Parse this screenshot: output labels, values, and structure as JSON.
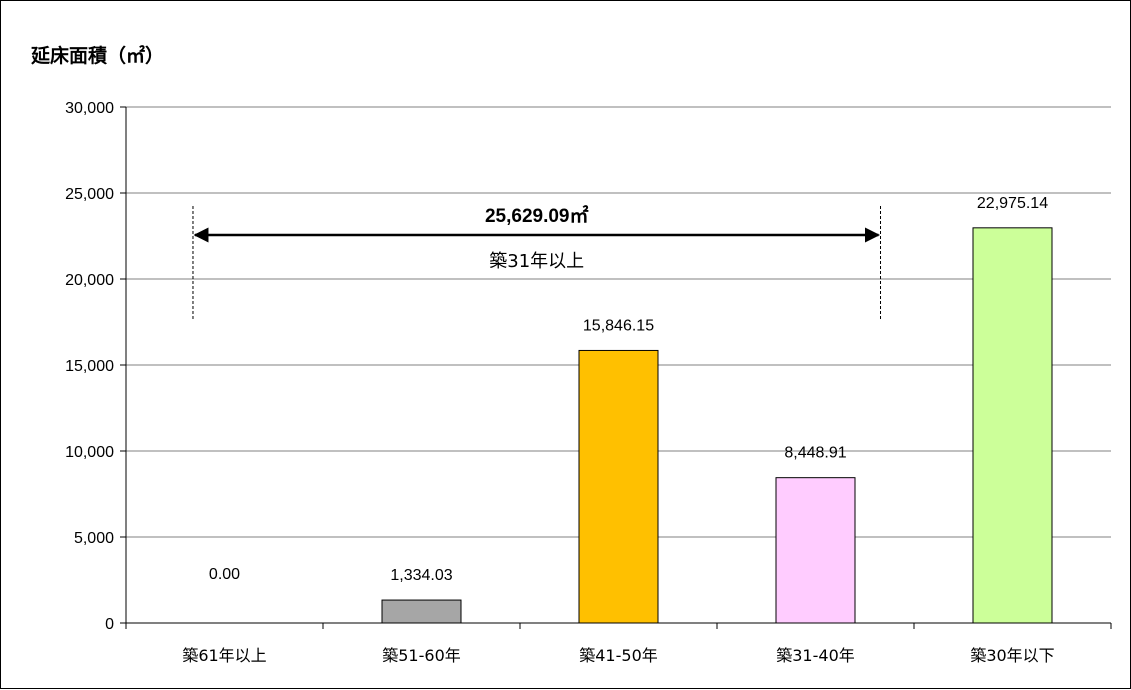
{
  "chart_data": {
    "type": "bar",
    "title": "延床面積（㎡）",
    "categories": [
      "築61年以上",
      "築51-60年",
      "築41-50年",
      "築31-40年",
      "築30年以下"
    ],
    "values": [
      0.0,
      1334.03,
      15846.15,
      8448.91,
      22975.14
    ],
    "value_labels": [
      "0.00",
      "1,334.03",
      "15,846.15",
      "8,448.91",
      "22,975.14"
    ],
    "colors": [
      "#ffffff",
      "#a6a6a6",
      "#ffc000",
      "#ffccff",
      "#ccff99"
    ],
    "ylim": [
      0,
      30000
    ],
    "yticks": [
      0,
      5000,
      10000,
      15000,
      20000,
      25000,
      30000
    ],
    "ytick_labels": [
      "0",
      "5,000",
      "10,000",
      "15,000",
      "20,000",
      "25,000",
      "30,000"
    ],
    "xlabel": "",
    "ylabel": "",
    "grid": true,
    "legend": "none",
    "annotation": {
      "value_text": "25,629.09㎡",
      "label_text": "築31年以上",
      "span_from_category": 0,
      "span_to_category": 3
    }
  }
}
